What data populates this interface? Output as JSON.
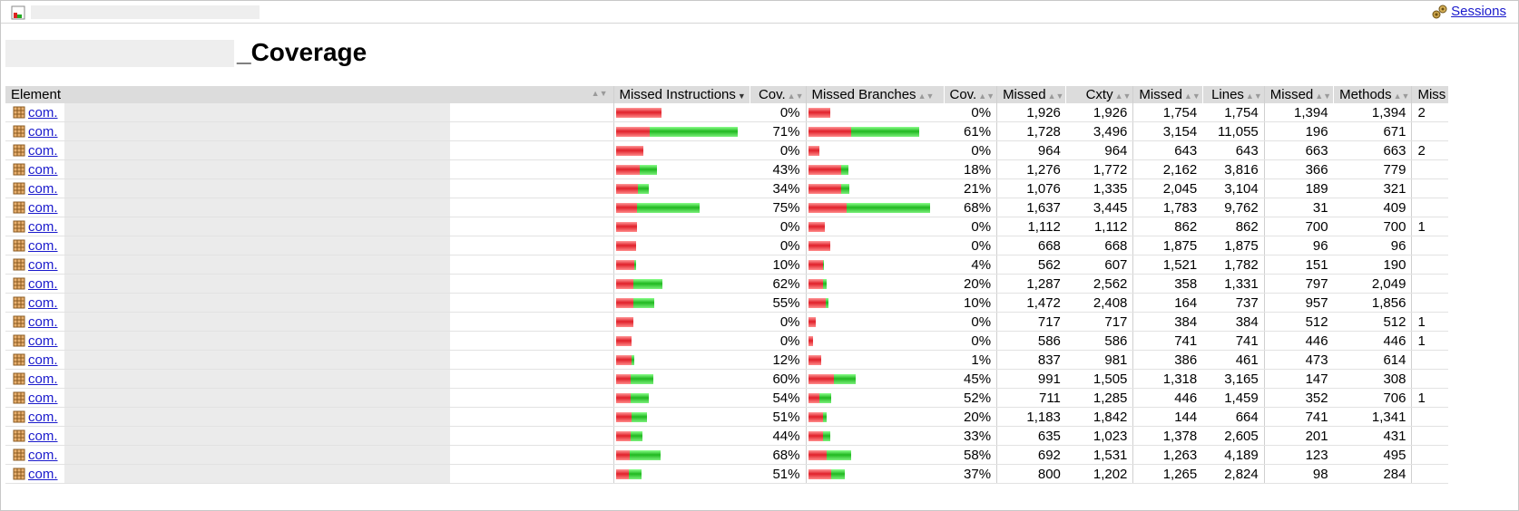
{
  "breadcrumb": {
    "sessions_label": "Sessions"
  },
  "page": {
    "title": "_Coverage"
  },
  "table": {
    "headers": {
      "element": "Element",
      "missed_instructions": "Missed Instructions",
      "cov1": "Cov.",
      "missed_branches": "Missed Branches",
      "cov2": "Cov.",
      "missed_cxty": "Missed",
      "cxty": "Cxty",
      "missed_lines": "Missed",
      "lines": "Lines",
      "missed_methods": "Missed",
      "methods": "Methods",
      "missed_classes": "Miss"
    },
    "rows": [
      {
        "element": "com.",
        "instr_cov": "0%",
        "instr_red": 50,
        "instr_green": 0,
        "br_cov": "0%",
        "br_red": 24,
        "br_green": 0,
        "missed_cxty": "1,926",
        "cxty": "1,926",
        "missed_lines": "1,754",
        "lines": "1,754",
        "missed_methods": "1,394",
        "methods": "1,394",
        "missed_classes": "2"
      },
      {
        "element": "com.",
        "instr_cov": "71%",
        "instr_red": 37,
        "instr_green": 97,
        "br_cov": "61%",
        "br_red": 47,
        "br_green": 75,
        "missed_cxty": "1,728",
        "cxty": "3,496",
        "missed_lines": "3,154",
        "lines": "11,055",
        "missed_methods": "196",
        "methods": "671",
        "missed_classes": ""
      },
      {
        "element": "com.",
        "instr_cov": "0%",
        "instr_red": 30,
        "instr_green": 0,
        "br_cov": "0%",
        "br_red": 12,
        "br_green": 0,
        "missed_cxty": "964",
        "cxty": "964",
        "missed_lines": "643",
        "lines": "643",
        "missed_methods": "663",
        "methods": "663",
        "missed_classes": "2"
      },
      {
        "element": "com.",
        "instr_cov": "43%",
        "instr_red": 26,
        "instr_green": 19,
        "br_cov": "18%",
        "br_red": 36,
        "br_green": 8,
        "missed_cxty": "1,276",
        "cxty": "1,772",
        "missed_lines": "2,162",
        "lines": "3,816",
        "missed_methods": "366",
        "methods": "779",
        "missed_classes": ""
      },
      {
        "element": "com.",
        "instr_cov": "34%",
        "instr_red": 24,
        "instr_green": 12,
        "br_cov": "21%",
        "br_red": 36,
        "br_green": 9,
        "missed_cxty": "1,076",
        "cxty": "1,335",
        "missed_lines": "2,045",
        "lines": "3,104",
        "missed_methods": "189",
        "methods": "321",
        "missed_classes": ""
      },
      {
        "element": "com.",
        "instr_cov": "75%",
        "instr_red": 23,
        "instr_green": 69,
        "br_cov": "68%",
        "br_red": 42,
        "br_green": 92,
        "missed_cxty": "1,637",
        "cxty": "3,445",
        "missed_lines": "1,783",
        "lines": "9,762",
        "missed_methods": "31",
        "methods": "409",
        "missed_classes": ""
      },
      {
        "element": "com.",
        "instr_cov": "0%",
        "instr_red": 23,
        "instr_green": 0,
        "br_cov": "0%",
        "br_red": 18,
        "br_green": 0,
        "missed_cxty": "1,112",
        "cxty": "1,112",
        "missed_lines": "862",
        "lines": "862",
        "missed_methods": "700",
        "methods": "700",
        "missed_classes": "1"
      },
      {
        "element": "com.",
        "instr_cov": "0%",
        "instr_red": 22,
        "instr_green": 0,
        "br_cov": "0%",
        "br_red": 24,
        "br_green": 0,
        "missed_cxty": "668",
        "cxty": "668",
        "missed_lines": "1,875",
        "lines": "1,875",
        "missed_methods": "96",
        "methods": "96",
        "missed_classes": ""
      },
      {
        "element": "com.",
        "instr_cov": "10%",
        "instr_red": 20,
        "instr_green": 2,
        "br_cov": "4%",
        "br_red": 16,
        "br_green": 1,
        "missed_cxty": "562",
        "cxty": "607",
        "missed_lines": "1,521",
        "lines": "1,782",
        "missed_methods": "151",
        "methods": "190",
        "missed_classes": ""
      },
      {
        "element": "com.",
        "instr_cov": "62%",
        "instr_red": 19,
        "instr_green": 32,
        "br_cov": "20%",
        "br_red": 16,
        "br_green": 4,
        "missed_cxty": "1,287",
        "cxty": "2,562",
        "missed_lines": "358",
        "lines": "1,331",
        "missed_methods": "797",
        "methods": "2,049",
        "missed_classes": ""
      },
      {
        "element": "com.",
        "instr_cov": "55%",
        "instr_red": 19,
        "instr_green": 23,
        "br_cov": "10%",
        "br_red": 19,
        "br_green": 3,
        "missed_cxty": "1,472",
        "cxty": "2,408",
        "missed_lines": "164",
        "lines": "737",
        "missed_methods": "957",
        "methods": "1,856",
        "missed_classes": ""
      },
      {
        "element": "com.",
        "instr_cov": "0%",
        "instr_red": 19,
        "instr_green": 0,
        "br_cov": "0%",
        "br_red": 8,
        "br_green": 0,
        "missed_cxty": "717",
        "cxty": "717",
        "missed_lines": "384",
        "lines": "384",
        "missed_methods": "512",
        "methods": "512",
        "missed_classes": "1"
      },
      {
        "element": "com.",
        "instr_cov": "0%",
        "instr_red": 17,
        "instr_green": 0,
        "br_cov": "0%",
        "br_red": 5,
        "br_green": 0,
        "missed_cxty": "586",
        "cxty": "586",
        "missed_lines": "741",
        "lines": "741",
        "missed_methods": "446",
        "methods": "446",
        "missed_classes": "1"
      },
      {
        "element": "com.",
        "instr_cov": "12%",
        "instr_red": 17,
        "instr_green": 3,
        "br_cov": "1%",
        "br_red": 14,
        "br_green": 0,
        "missed_cxty": "837",
        "cxty": "981",
        "missed_lines": "386",
        "lines": "461",
        "missed_methods": "473",
        "methods": "614",
        "missed_classes": ""
      },
      {
        "element": "com.",
        "instr_cov": "60%",
        "instr_red": 16,
        "instr_green": 25,
        "br_cov": "45%",
        "br_red": 28,
        "br_green": 24,
        "missed_cxty": "991",
        "cxty": "1,505",
        "missed_lines": "1,318",
        "lines": "3,165",
        "missed_methods": "147",
        "methods": "308",
        "missed_classes": ""
      },
      {
        "element": "com.",
        "instr_cov": "54%",
        "instr_red": 16,
        "instr_green": 20,
        "br_cov": "52%",
        "br_red": 12,
        "br_green": 13,
        "missed_cxty": "711",
        "cxty": "1,285",
        "missed_lines": "446",
        "lines": "1,459",
        "missed_methods": "352",
        "methods": "706",
        "missed_classes": "1"
      },
      {
        "element": "com.",
        "instr_cov": "51%",
        "instr_red": 17,
        "instr_green": 17,
        "br_cov": "20%",
        "br_red": 16,
        "br_green": 4,
        "missed_cxty": "1,183",
        "cxty": "1,842",
        "missed_lines": "144",
        "lines": "664",
        "missed_methods": "741",
        "methods": "1,341",
        "missed_classes": ""
      },
      {
        "element": "com.",
        "instr_cov": "44%",
        "instr_red": 16,
        "instr_green": 13,
        "br_cov": "33%",
        "br_red": 16,
        "br_green": 8,
        "missed_cxty": "635",
        "cxty": "1,023",
        "missed_lines": "1,378",
        "lines": "2,605",
        "missed_methods": "201",
        "methods": "431",
        "missed_classes": ""
      },
      {
        "element": "com.",
        "instr_cov": "68%",
        "instr_red": 15,
        "instr_green": 34,
        "br_cov": "58%",
        "br_red": 20,
        "br_green": 27,
        "missed_cxty": "692",
        "cxty": "1,531",
        "missed_lines": "1,263",
        "lines": "4,189",
        "missed_methods": "123",
        "methods": "495",
        "missed_classes": ""
      },
      {
        "element": "com.",
        "instr_cov": "51%",
        "instr_red": 14,
        "instr_green": 14,
        "br_cov": "37%",
        "br_red": 25,
        "br_green": 15,
        "missed_cxty": "800",
        "cxty": "1,202",
        "missed_lines": "1,265",
        "lines": "2,824",
        "missed_methods": "98",
        "methods": "284",
        "missed_classes": ""
      }
    ]
  }
}
